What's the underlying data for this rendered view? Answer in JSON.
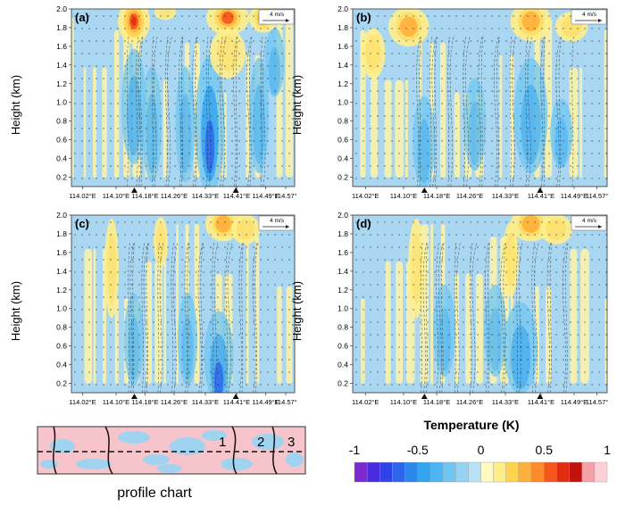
{
  "chart_data": {
    "type": "heatmap",
    "panels": [
      {
        "label": "(a)",
        "intensity": 1.0,
        "hot": [
          [
            0.28,
            0.93,
            0.045,
            0.09,
            1.0
          ],
          [
            0.7,
            0.95,
            0.06,
            0.07,
            0.8
          ],
          [
            0.86,
            0.95,
            0.04,
            0.06,
            0.6
          ],
          [
            0.7,
            0.75,
            0.05,
            0.1,
            0.4
          ],
          [
            0.42,
            0.98,
            0.03,
            0.03,
            0.3
          ]
        ],
        "cold": [
          [
            0.62,
            0.35,
            0.03,
            0.3,
            1.0
          ],
          [
            0.28,
            0.45,
            0.025,
            0.25,
            0.6
          ],
          [
            0.36,
            0.35,
            0.02,
            0.25,
            0.5
          ],
          [
            0.51,
            0.35,
            0.02,
            0.25,
            0.5
          ],
          [
            0.84,
            0.4,
            0.02,
            0.25,
            0.55
          ],
          [
            0.91,
            0.7,
            0.02,
            0.15,
            0.5
          ]
        ]
      },
      {
        "label": "(b)",
        "intensity": 0.6,
        "hot": [
          [
            0.22,
            0.9,
            0.05,
            0.08,
            0.6
          ],
          [
            0.7,
            0.93,
            0.05,
            0.08,
            0.7
          ],
          [
            0.08,
            0.75,
            0.03,
            0.1,
            0.45
          ],
          [
            0.86,
            0.9,
            0.04,
            0.06,
            0.5
          ]
        ],
        "cold": [
          [
            0.7,
            0.4,
            0.03,
            0.25,
            0.6
          ],
          [
            0.28,
            0.25,
            0.02,
            0.2,
            0.5
          ],
          [
            0.48,
            0.35,
            0.02,
            0.2,
            0.4
          ],
          [
            0.82,
            0.3,
            0.02,
            0.15,
            0.45
          ]
        ]
      },
      {
        "label": "(c)",
        "intensity": 0.55,
        "hot": [
          [
            0.68,
            0.95,
            0.05,
            0.07,
            0.7
          ],
          [
            0.78,
            0.92,
            0.04,
            0.06,
            0.5
          ],
          [
            0.4,
            0.85,
            0.02,
            0.1,
            0.4
          ],
          [
            0.18,
            0.7,
            0.02,
            0.2,
            0.4
          ]
        ],
        "cold": [
          [
            0.66,
            0.2,
            0.03,
            0.2,
            0.8
          ],
          [
            0.28,
            0.3,
            0.02,
            0.2,
            0.45
          ],
          [
            0.52,
            0.3,
            0.02,
            0.2,
            0.4
          ]
        ]
      },
      {
        "label": "(d)",
        "intensity": 0.5,
        "hot": [
          [
            0.7,
            0.95,
            0.05,
            0.07,
            0.7
          ],
          [
            0.8,
            0.92,
            0.04,
            0.06,
            0.5
          ],
          [
            0.62,
            0.75,
            0.02,
            0.15,
            0.45
          ],
          [
            0.25,
            0.7,
            0.02,
            0.2,
            0.35
          ]
        ],
        "cold": [
          [
            0.66,
            0.25,
            0.03,
            0.2,
            0.7
          ],
          [
            0.36,
            0.35,
            0.02,
            0.2,
            0.4
          ],
          [
            0.56,
            0.35,
            0.02,
            0.2,
            0.4
          ]
        ]
      }
    ],
    "ylabel": "Height (km)",
    "x_ticks": [
      "114.02°E",
      "114.10°E",
      "114.18°E",
      "114.26°E",
      "114.33°E",
      "114.41°E",
      "114.49°E",
      "114.57°"
    ],
    "y_ticks": [
      "0.2",
      "0.4",
      "0.6",
      "0.8",
      "1.0",
      "1.2",
      "1.4",
      "1.6",
      "1.8",
      "2.0"
    ],
    "ylim": [
      0.1,
      2.0
    ],
    "markers_lon": [
      114.175,
      114.425
    ],
    "wind_reference": "4 m/s",
    "colorbar": {
      "title": "Temperature (K)",
      "tick_labels": [
        "-1",
        "-0.5",
        "0",
        "0.5",
        "1"
      ],
      "colors": [
        "#7a2bd0",
        "#4a2be0",
        "#2f43e6",
        "#2c64ea",
        "#2d86ea",
        "#33a3ee",
        "#4cb5f0",
        "#6fc5f2",
        "#95d3f2",
        "#b7e2f5",
        "#fffbc0",
        "#ffee88",
        "#ffd44c",
        "#ffb03c",
        "#ff8a2c",
        "#f5561c",
        "#e02d12",
        "#c1120e",
        "#f6a0a8",
        "#ffd0d5"
      ]
    }
  },
  "inset": {
    "caption": "profile chart",
    "line_labels": [
      "1",
      "2",
      "3"
    ]
  }
}
